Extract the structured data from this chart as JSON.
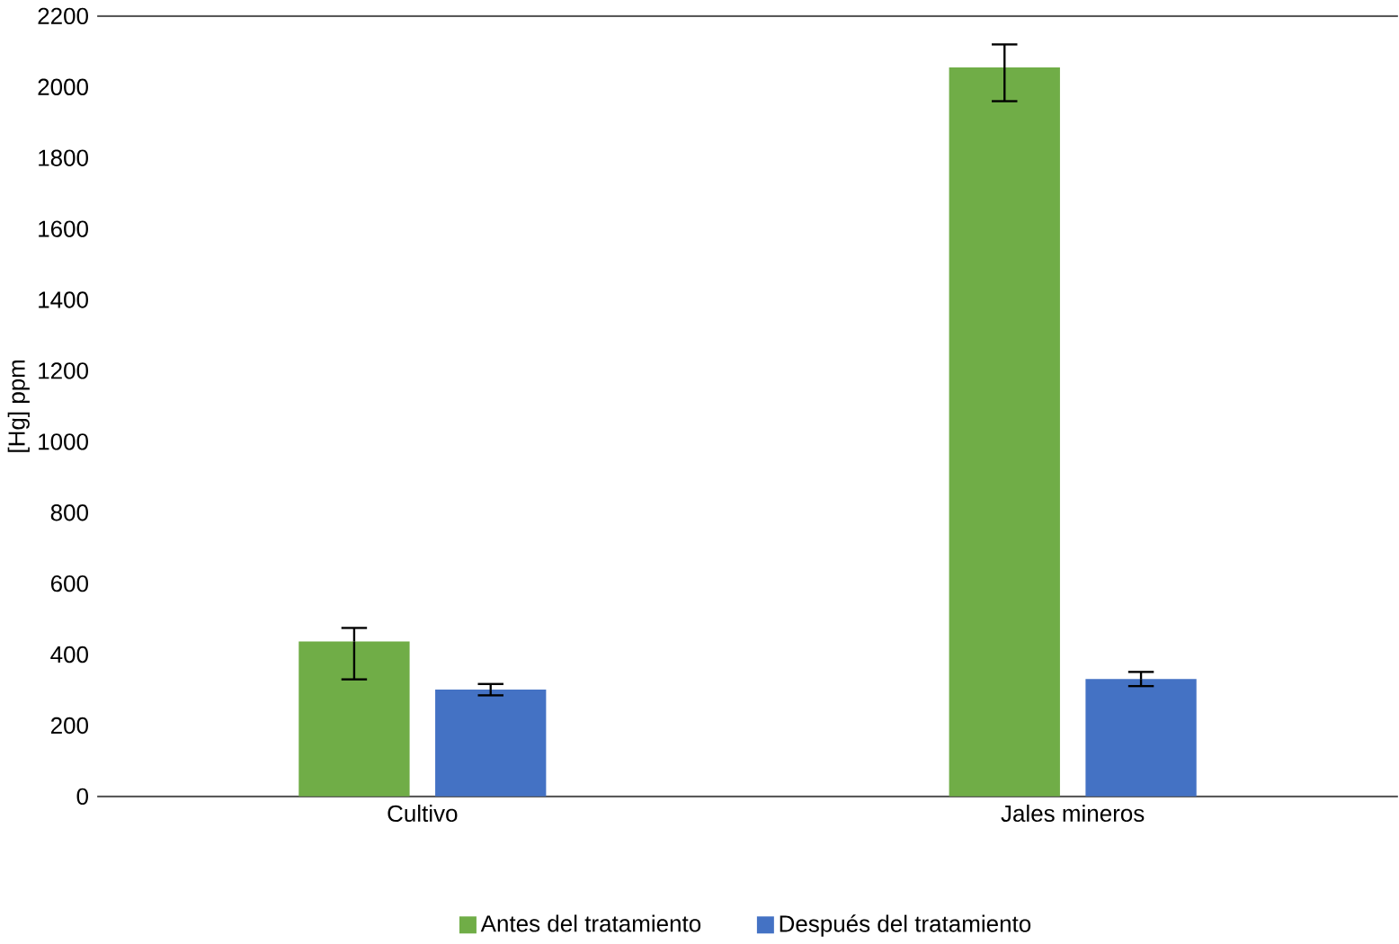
{
  "chart_data": {
    "type": "bar",
    "ylabel": "[Hg] ppm",
    "categories": [
      "Cultivo",
      "Jales mineros"
    ],
    "series": [
      {
        "name": "Antes del tratamiento",
        "color": "#70ad47",
        "values": [
          437,
          2055
        ],
        "errors": [
          [
            330,
            475
          ],
          [
            1960,
            2120
          ]
        ]
      },
      {
        "name": "Después del tratamiento",
        "color": "#4472c4",
        "values": [
          301,
          331
        ],
        "errors": [
          16,
          20
        ]
      }
    ],
    "ylim": [
      0,
      2200
    ],
    "yticks": [
      0,
      200,
      400,
      600,
      800,
      1000,
      1200,
      1400,
      1600,
      1800,
      2000,
      2200
    ],
    "legend": "bottom"
  }
}
